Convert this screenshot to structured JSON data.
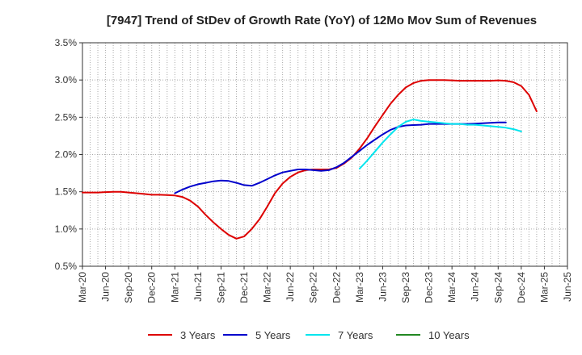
{
  "chart_data": {
    "type": "line",
    "title": "[7947]  Trend of StDev of Growth Rate (YoY) of 12Mo Mov Sum of Revenues",
    "xlabel": "",
    "ylabel": "",
    "ylim": [
      0.5,
      3.5
    ],
    "y_ticks": [
      0.5,
      1.0,
      1.5,
      2.0,
      2.5,
      3.0,
      3.5
    ],
    "y_tick_labels": [
      "0.5%",
      "1.0%",
      "1.5%",
      "2.0%",
      "2.5%",
      "3.0%",
      "3.5%"
    ],
    "x_tick_labels": [
      "Mar-20",
      "Jun-20",
      "Sep-20",
      "Dec-20",
      "Mar-21",
      "Jun-21",
      "Sep-21",
      "Dec-21",
      "Mar-22",
      "Jun-22",
      "Sep-22",
      "Dec-22",
      "Mar-23",
      "Jun-23",
      "Sep-23",
      "Dec-23",
      "Mar-24",
      "Jun-24",
      "Sep-24",
      "Dec-24",
      "Mar-25",
      "Jun-25"
    ],
    "grid": true,
    "legend_position": "bottom",
    "series": [
      {
        "name": "3 Years",
        "color": "#dd0000",
        "start_month": 0,
        "values": [
          1.49,
          1.49,
          1.49,
          1.495,
          1.5,
          1.5,
          1.49,
          1.48,
          1.47,
          1.46,
          1.46,
          1.455,
          1.45,
          1.43,
          1.38,
          1.3,
          1.19,
          1.09,
          1.0,
          0.92,
          0.87,
          0.9,
          1.0,
          1.13,
          1.3,
          1.48,
          1.61,
          1.7,
          1.76,
          1.79,
          1.8,
          1.8,
          1.8,
          1.82,
          1.88,
          1.96,
          2.08,
          2.22,
          2.38,
          2.53,
          2.68,
          2.8,
          2.9,
          2.96,
          2.99,
          3.0,
          3.0,
          3.0,
          2.995,
          2.99,
          2.99,
          2.99,
          2.99,
          2.99,
          2.995,
          2.99,
          2.97,
          2.92,
          2.8,
          2.58
        ]
      },
      {
        "name": "5 Years",
        "color": "#0000cc",
        "start_month": 12,
        "values": [
          1.48,
          1.53,
          1.57,
          1.6,
          1.62,
          1.64,
          1.65,
          1.645,
          1.62,
          1.59,
          1.58,
          1.62,
          1.67,
          1.72,
          1.76,
          1.78,
          1.8,
          1.8,
          1.79,
          1.78,
          1.79,
          1.83,
          1.89,
          1.97,
          2.05,
          2.13,
          2.2,
          2.27,
          2.33,
          2.37,
          2.39,
          2.395,
          2.4,
          2.41,
          2.41,
          2.41,
          2.41,
          2.41,
          2.41,
          2.415,
          2.42,
          2.425,
          2.43,
          2.43
        ]
      },
      {
        "name": "7 Years",
        "color": "#00e5ee",
        "start_month": 36,
        "values": [
          1.81,
          1.92,
          2.04,
          2.16,
          2.27,
          2.37,
          2.44,
          2.47,
          2.45,
          2.44,
          2.43,
          2.42,
          2.41,
          2.41,
          2.4,
          2.4,
          2.39,
          2.38,
          2.37,
          2.36,
          2.34,
          2.31
        ]
      },
      {
        "name": "10 Years",
        "color": "#228822",
        "start_month": 0,
        "values": []
      }
    ]
  }
}
